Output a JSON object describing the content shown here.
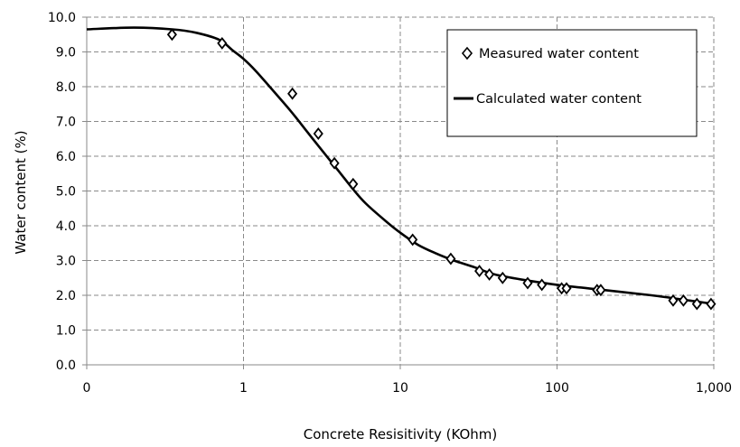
{
  "chart_data": {
    "type": "scatter",
    "xlabel": "Concrete Resisitivity (KOhm)",
    "ylabel": "Water content (%)",
    "x_scale": "log",
    "x_ticks": [
      {
        "value": 0.1,
        "label": "0"
      },
      {
        "value": 1,
        "label": "1"
      },
      {
        "value": 10,
        "label": "10"
      },
      {
        "value": 100,
        "label": "100"
      },
      {
        "value": 1000,
        "label": "1,000"
      }
    ],
    "xlim": [
      0.1,
      1000
    ],
    "ylim": [
      0,
      10
    ],
    "y_ticks": [
      0,
      1,
      2,
      3,
      4,
      5,
      6,
      7,
      8,
      9,
      10
    ],
    "y_tick_labels": [
      "0.0",
      "1.0",
      "2.0",
      "3.0",
      "4.0",
      "5.0",
      "6.0",
      "7.0",
      "8.0",
      "9.0",
      "10.0"
    ],
    "grid": true,
    "legend_position": "top-right",
    "series": [
      {
        "name": "Measured water content",
        "marker": "diamond",
        "x": [
          0.35,
          0.73,
          2.05,
          3.0,
          3.8,
          5.0,
          12.0,
          21.0,
          32.0,
          37.0,
          45.0,
          65.0,
          80.0,
          107.0,
          115.0,
          180.0,
          190.0,
          550.0,
          640.0,
          780.0,
          960.0
        ],
        "y": [
          9.5,
          9.25,
          7.8,
          6.65,
          5.8,
          5.2,
          3.6,
          3.05,
          2.7,
          2.6,
          2.5,
          2.35,
          2.3,
          2.2,
          2.2,
          2.15,
          2.15,
          1.85,
          1.85,
          1.75,
          1.75
        ]
      },
      {
        "name": "Calculated water content",
        "line": true,
        "x": [
          0.1,
          0.2,
          0.35,
          0.5,
          0.7,
          0.85,
          1.0,
          1.2,
          1.5,
          2.0,
          2.5,
          3.0,
          4.0,
          5.0,
          6.0,
          8.0,
          10.0,
          13.0,
          17.0,
          22.0,
          30.0,
          40.0,
          60.0,
          100.0,
          200.0,
          400.0,
          700.0,
          1000.0
        ],
        "y": [
          9.65,
          9.7,
          9.65,
          9.55,
          9.35,
          9.05,
          8.8,
          8.45,
          7.95,
          7.3,
          6.75,
          6.3,
          5.6,
          5.05,
          4.65,
          4.15,
          3.8,
          3.45,
          3.2,
          3.0,
          2.8,
          2.6,
          2.45,
          2.3,
          2.15,
          2.0,
          1.85,
          1.75
        ]
      }
    ]
  }
}
